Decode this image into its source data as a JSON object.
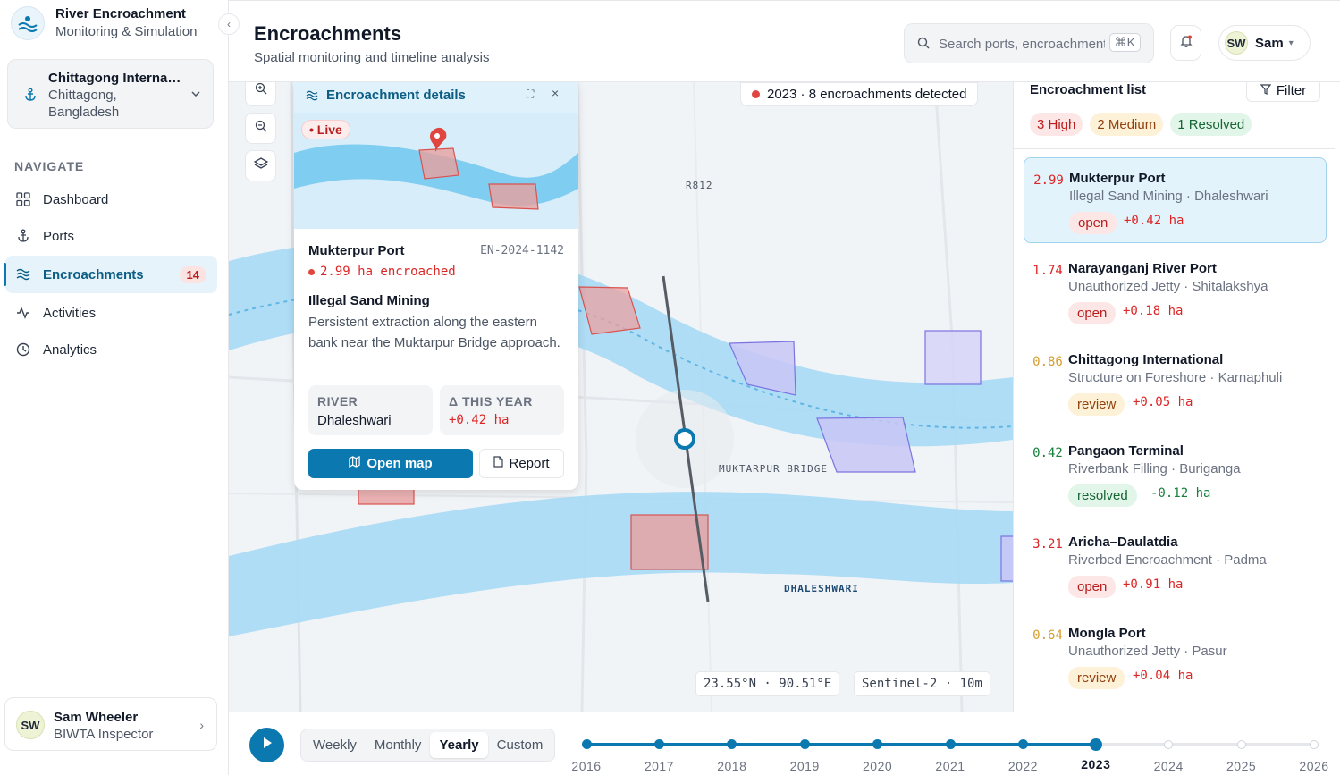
{
  "app": {
    "title": "River Encroachment",
    "subtitle": "Monitoring & Simulation"
  },
  "port_selector": {
    "name": "Chittagong Interna…",
    "location": "Chittagong, Bangladesh"
  },
  "nav": {
    "heading": "NAVIGATE",
    "items": [
      {
        "label": "Dashboard",
        "icon": "dashboard-icon"
      },
      {
        "label": "Ports",
        "icon": "anchor-icon"
      },
      {
        "label": "Encroachments",
        "icon": "waves-icon",
        "badge": "14",
        "active": true
      },
      {
        "label": "Activities",
        "icon": "activity-icon"
      },
      {
        "label": "Analytics",
        "icon": "clock-icon"
      }
    ]
  },
  "user": {
    "initials": "SW",
    "name": "Sam Wheeler",
    "role": "BIWTA Inspector",
    "short_name": "Sam"
  },
  "header": {
    "title": "Encroachments",
    "subtitle": "Spatial monitoring and timeline analysis",
    "search_placeholder": "Search ports, encroachments…",
    "search_shortcut": "⌘K"
  },
  "map": {
    "status": "2023 · 8 encroachments detected",
    "road_label": "R812",
    "bridge_label": "MUKTARPUR BRIDGE",
    "river_label": "DHALESHWARI",
    "coords": "23.55°N · 90.51°E",
    "imagery": "Sentinel-2 · 10m"
  },
  "details": {
    "title": "Encroachment details",
    "live_label": "Live",
    "port": "Mukterpur Port",
    "id": "EN-2024-1142",
    "area": "2.99 ha encroached",
    "type": "Illegal Sand Mining",
    "description": "Persistent extraction along the eastern bank near the Muktarpur Bridge approach.",
    "river_label": "RIVER",
    "river": "Dhaleshwari",
    "delta_label": "Δ THIS YEAR",
    "delta": "+0.42 ha",
    "open_map": "Open map",
    "report": "Report"
  },
  "panel": {
    "title": "Encroachment list",
    "filter": "Filter",
    "chips": {
      "high": "3 High",
      "medium": "2 Medium",
      "resolved": "1 Resolved"
    },
    "items": [
      {
        "score": "2.99",
        "severity": "high",
        "name": "Mukterpur Port",
        "sub": "Illegal Sand Mining · Dhaleshwari",
        "status": "open",
        "delta": "+0.42 ha",
        "selected": true
      },
      {
        "score": "1.74",
        "severity": "high",
        "name": "Narayanganj River Port",
        "sub": "Unauthorized Jetty · Shitalakshya",
        "status": "open",
        "delta": "+0.18 ha"
      },
      {
        "score": "0.86",
        "severity": "medium",
        "name": "Chittagong International",
        "sub": "Structure on Foreshore · Karnaphuli",
        "status": "review",
        "delta": "+0.05 ha"
      },
      {
        "score": "0.42",
        "severity": "low",
        "name": "Pangaon Terminal",
        "sub": "Riverbank Filling · Buriganga",
        "status": "resolved",
        "delta": "-0.12 ha"
      },
      {
        "score": "3.21",
        "severity": "high",
        "name": "Aricha–Daulatdia",
        "sub": "Riverbed Encroachment · Padma",
        "status": "open",
        "delta": "+0.91 ha"
      },
      {
        "score": "0.64",
        "severity": "medium",
        "name": "Mongla Port",
        "sub": "Unauthorized Jetty · Pasur",
        "status": "review",
        "delta": "+0.04 ha"
      }
    ]
  },
  "timeline": {
    "modes": [
      "Weekly",
      "Monthly",
      "Yearly",
      "Custom"
    ],
    "active_mode": "Yearly",
    "years": [
      "2016",
      "2017",
      "2018",
      "2019",
      "2020",
      "2021",
      "2022",
      "2023",
      "2024",
      "2025",
      "2026"
    ],
    "current_year": "2023"
  }
}
